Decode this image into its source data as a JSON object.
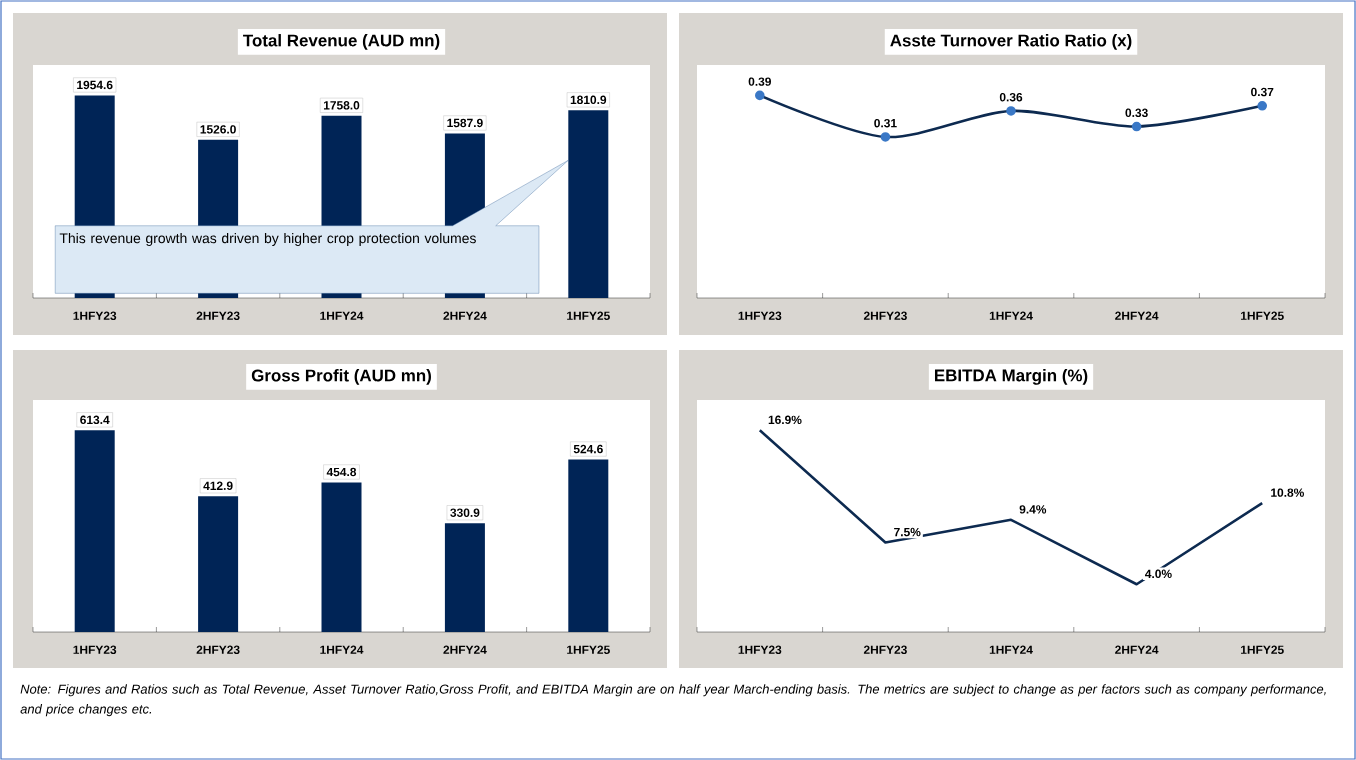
{
  "chart_data": [
    {
      "type": "bar",
      "title": "Total Revenue (AUD mn)",
      "categories": [
        "1HFY23",
        "2HFY23",
        "1HFY24",
        "2HFY24",
        "1HFY25"
      ],
      "values": [
        1954.6,
        1526.0,
        1758.0,
        1587.9,
        1810.9
      ],
      "value_labels": [
        "1954.6",
        "1526.0",
        "1758.0",
        "1587.9",
        "1810.9"
      ],
      "color": "#002456",
      "annotations": [
        "This revenue growth was driven by higher crop protection volumes"
      ]
    },
    {
      "type": "line",
      "title": "Asste Turnover Ratio Ratio (x)",
      "categories": [
        "1HFY23",
        "2HFY23",
        "1HFY24",
        "2HFY24",
        "1HFY25"
      ],
      "values": [
        0.39,
        0.31,
        0.36,
        0.33,
        0.37
      ],
      "value_labels": [
        "0.39",
        "0.31",
        "0.36",
        "0.33",
        "0.37"
      ],
      "color": "#0d2a50",
      "marker": "circle"
    },
    {
      "type": "bar",
      "title": "Gross Profit (AUD mn)",
      "categories": [
        "1HFY23",
        "2HFY23",
        "1HFY24",
        "2HFY24",
        "1HFY25"
      ],
      "values": [
        613.4,
        412.9,
        454.8,
        330.9,
        524.6
      ],
      "value_labels": [
        "613.4",
        "412.9",
        "454.8",
        "330.9",
        "524.6"
      ],
      "color": "#002456"
    },
    {
      "type": "line",
      "title": "EBITDA Margin (%)",
      "categories": [
        "1HFY23",
        "2HFY23",
        "1HFY24",
        "2HFY24",
        "1HFY25"
      ],
      "values": [
        16.9,
        7.5,
        9.4,
        4.0,
        10.8
      ],
      "value_labels": [
        "16.9%",
        "7.5%",
        "9.4%",
        "4.0%",
        "10.8%"
      ],
      "color": "#0d2a50",
      "marker": "none",
      "annotations": [
        "Note: Figures and Ratios such as Total Revenue, Asset Turnover Ratio,Gross Profit, and EBITDA Margin are on half year March-ending basis. The metrics are subject to change as per factors such as company performance, and price changes etc."
      ]
    }
  ]
}
